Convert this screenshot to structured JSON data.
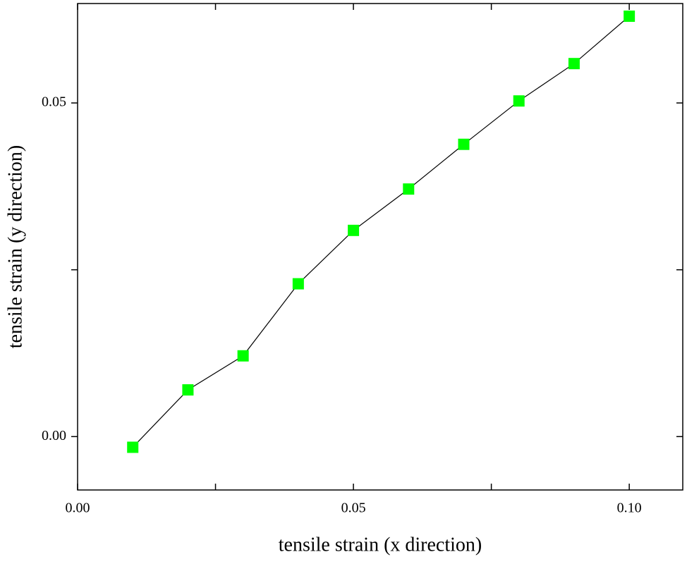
{
  "chart_data": {
    "type": "line",
    "xlabel": "tensile strain (x direction)",
    "ylabel": "tensile strain (y direction)",
    "x": [
      0.01,
      0.02,
      0.03,
      0.04,
      0.05,
      0.06,
      0.07,
      0.08,
      0.09,
      0.1
    ],
    "series": [
      {
        "color": "#00ff00",
        "line_color": "#000000",
        "marker": "square",
        "values": [
          -0.0016,
          0.007,
          0.0121,
          0.0229,
          0.0309,
          0.0371,
          0.0438,
          0.0503,
          0.0559,
          0.063
        ]
      }
    ],
    "xlim": [
      0,
      0.1097
    ],
    "ylim": [
      -0.008,
      0.0649
    ],
    "xticks": [
      {
        "value": 0,
        "label": "0.00"
      },
      0.05,
      {
        "value": 0.1,
        "label": "0.10"
      }
    ],
    "xminor_ticks": [
      0.025,
      0.075
    ],
    "yticks": [
      {
        "value": 0,
        "label": "0.00"
      },
      0.05
    ],
    "yminor_ticks": [
      0.025
    ],
    "grid": false
  }
}
